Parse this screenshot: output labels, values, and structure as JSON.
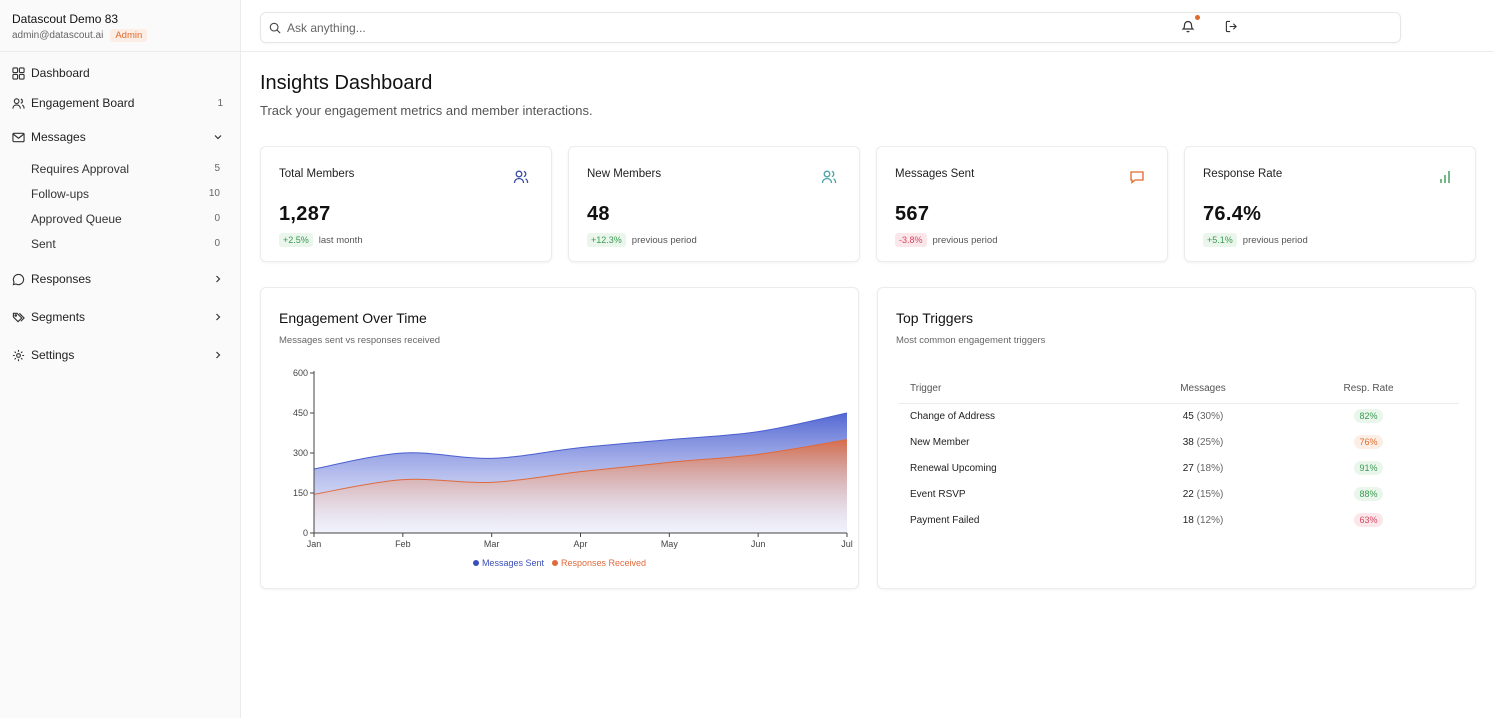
{
  "account": {
    "name": "Datascout Demo 83",
    "email": "admin@datascout.ai",
    "role": "Admin"
  },
  "nav": {
    "dashboard": "Dashboard",
    "engagement_board": {
      "label": "Engagement Board",
      "count": "1"
    },
    "messages": {
      "label": "Messages"
    },
    "messages_sub": [
      {
        "label": "Requires Approval",
        "count": "5"
      },
      {
        "label": "Follow-ups",
        "count": "10"
      },
      {
        "label": "Approved Queue",
        "count": "0"
      },
      {
        "label": "Sent",
        "count": "0"
      }
    ],
    "responses": "Responses",
    "segments": "Segments",
    "settings": "Settings"
  },
  "search": {
    "placeholder": "Ask anything..."
  },
  "page": {
    "title": "Insights Dashboard",
    "subtitle": "Track your engagement metrics and member interactions."
  },
  "stats": [
    {
      "title": "Total Members",
      "value": "1,287",
      "delta": "+2.5%",
      "period": "last month",
      "icon": "users-icon",
      "color": "#3b4fa8"
    },
    {
      "title": "New Members",
      "value": "48",
      "delta": "+12.3%",
      "period": "previous period",
      "icon": "users-icon",
      "color": "#4aa3a3"
    },
    {
      "title": "Messages Sent",
      "value": "567",
      "delta": "-3.8%",
      "period": "previous period",
      "icon": "message-icon",
      "color": "#e06a2c"
    },
    {
      "title": "Response Rate",
      "value": "76.4%",
      "delta": "+5.1%",
      "period": "previous period",
      "icon": "bar-chart-icon",
      "color": "#3b9b52"
    }
  ],
  "engagement": {
    "title": "Engagement Over Time",
    "subtitle": "Messages sent vs responses received"
  },
  "chart_data": {
    "type": "area",
    "title": "Engagement Over Time",
    "categories": [
      "Jan",
      "Feb",
      "Mar",
      "Apr",
      "May",
      "Jun",
      "Jul"
    ],
    "series": [
      {
        "name": "Messages Sent",
        "values": [
          240,
          300,
          280,
          320,
          350,
          380,
          450
        ],
        "color": "#4a5fd0"
      },
      {
        "name": "Responses Received",
        "values": [
          145,
          200,
          190,
          230,
          265,
          295,
          350
        ],
        "color": "#e06a3c"
      }
    ],
    "ylim": [
      0,
      600
    ],
    "yticks": [
      0,
      150,
      300,
      450,
      600
    ],
    "legend": "bottom-center"
  },
  "triggers": {
    "title": "Top Triggers",
    "subtitle": "Most common engagement triggers",
    "headers": {
      "trigger": "Trigger",
      "messages": "Messages",
      "rate": "Resp. Rate"
    },
    "rows": [
      {
        "name": "Change of Address",
        "count": "45",
        "pct": "(30%)",
        "rate": "82%",
        "level": "good"
      },
      {
        "name": "New Member",
        "count": "38",
        "pct": "(25%)",
        "rate": "76%",
        "level": "mid"
      },
      {
        "name": "Renewal Upcoming",
        "count": "27",
        "pct": "(18%)",
        "rate": "91%",
        "level": "good"
      },
      {
        "name": "Event RSVP",
        "count": "22",
        "pct": "(15%)",
        "rate": "88%",
        "level": "good"
      },
      {
        "name": "Payment Failed",
        "count": "18",
        "pct": "(12%)",
        "rate": "63%",
        "level": "bad"
      }
    ]
  }
}
